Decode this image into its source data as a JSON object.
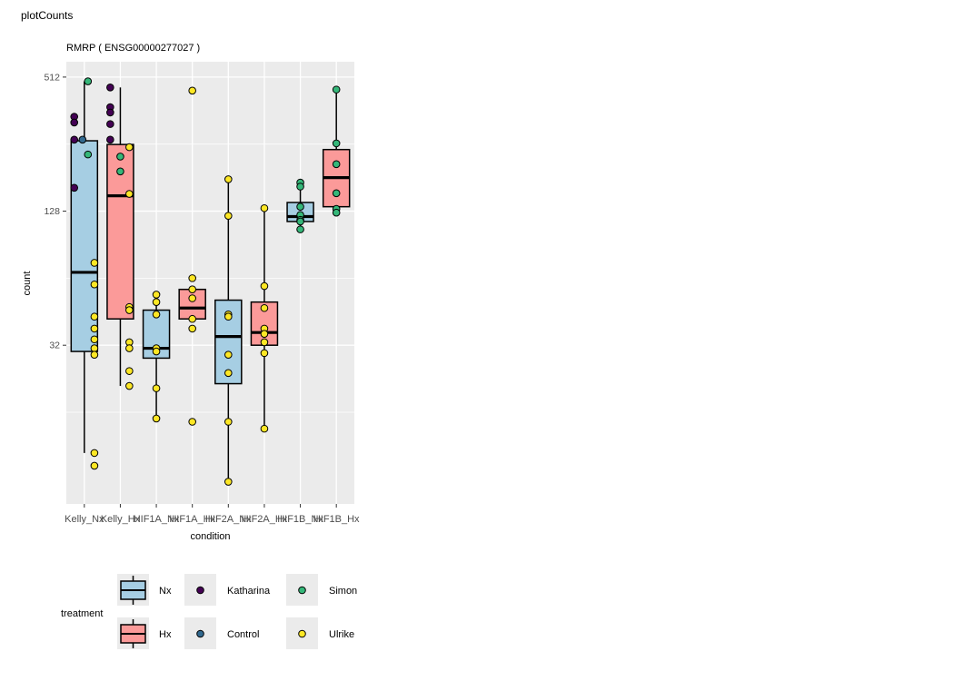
{
  "window_title": "plotCounts",
  "chart_data": {
    "type": "box",
    "title": "RMRP ( ENSG00000277027 )",
    "xlabel": "condition",
    "ylabel": "count",
    "y_scale": "log2",
    "ylim": [
      6.2,
      600
    ],
    "y_ticks": [
      32,
      128,
      512
    ],
    "grid": true,
    "categories": [
      "Kelly_Nx",
      "Kelly_Hx",
      "HIF1A_Nx",
      "HIF1A_Hx",
      "HIF2A_Nx",
      "HIF2A_Hx",
      "HIF1B_Nx",
      "HIF1B_Hx"
    ],
    "boxes": [
      {
        "condition": "Kelly_Nx",
        "treatment": "Nx",
        "whisker_low": 10.5,
        "q1": 30,
        "median": 68,
        "q3": 265,
        "whisker_high": 490
      },
      {
        "condition": "Kelly_Hx",
        "treatment": "Hx",
        "whisker_low": 21,
        "q1": 42,
        "median": 150,
        "q3": 255,
        "whisker_high": 460
      },
      {
        "condition": "HIF1A_Nx",
        "treatment": "Nx",
        "whisker_low": 15,
        "q1": 28,
        "median": 31,
        "q3": 46,
        "whisker_high": 54
      },
      {
        "condition": "HIF1A_Hx",
        "treatment": "Hx",
        "whisker_low": 41.5,
        "q1": 42,
        "median": 47,
        "q3": 57,
        "whisker_high": 57
      },
      {
        "condition": "HIF2A_Nx",
        "treatment": "Nx",
        "whisker_low": 7.8,
        "q1": 21.5,
        "median": 35,
        "q3": 51,
        "whisker_high": 178
      },
      {
        "condition": "HIF2A_Hx",
        "treatment": "Hx",
        "whisker_low": 13.5,
        "q1": 32,
        "median": 36.5,
        "q3": 50,
        "whisker_high": 132
      },
      {
        "condition": "HIF1B_Nx",
        "treatment": "Nx",
        "whisker_low": 106,
        "q1": 115,
        "median": 121,
        "q3": 140,
        "whisker_high": 172
      },
      {
        "condition": "HIF1B_Hx",
        "treatment": "Hx",
        "whisker_low": 127,
        "q1": 134,
        "median": 181,
        "q3": 242,
        "whisker_high": 450
      }
    ],
    "points": [
      {
        "condition": "Kelly_Nx",
        "sample": "Simon",
        "y": 490,
        "jitter": 0.1
      },
      {
        "condition": "Kelly_Nx",
        "sample": "Katharina",
        "y": 340,
        "jitter": -0.28
      },
      {
        "condition": "Kelly_Nx",
        "sample": "Katharina",
        "y": 320,
        "jitter": -0.28
      },
      {
        "condition": "Kelly_Nx",
        "sample": "Katharina",
        "y": 268,
        "jitter": -0.28
      },
      {
        "condition": "Kelly_Nx",
        "sample": "Control",
        "y": 268,
        "jitter": -0.05
      },
      {
        "condition": "Kelly_Nx",
        "sample": "Simon",
        "y": 230,
        "jitter": 0.1
      },
      {
        "condition": "Kelly_Nx",
        "sample": "Katharina",
        "y": 163,
        "jitter": -0.28
      },
      {
        "condition": "Kelly_Nx",
        "sample": "Ulrike",
        "y": 75,
        "jitter": 0.28
      },
      {
        "condition": "Kelly_Nx",
        "sample": "Ulrike",
        "y": 60,
        "jitter": 0.28
      },
      {
        "condition": "Kelly_Nx",
        "sample": "Ulrike",
        "y": 43,
        "jitter": 0.28
      },
      {
        "condition": "Kelly_Nx",
        "sample": "Ulrike",
        "y": 38,
        "jitter": 0.28
      },
      {
        "condition": "Kelly_Nx",
        "sample": "Ulrike",
        "y": 34,
        "jitter": 0.28
      },
      {
        "condition": "Kelly_Nx",
        "sample": "Ulrike",
        "y": 31,
        "jitter": 0.28
      },
      {
        "condition": "Kelly_Nx",
        "sample": "Ulrike",
        "y": 29,
        "jitter": 0.28
      },
      {
        "condition": "Kelly_Nx",
        "sample": "Ulrike",
        "y": 10.5,
        "jitter": 0.28
      },
      {
        "condition": "Kelly_Nx",
        "sample": "Ulrike",
        "y": 9.2,
        "jitter": 0.28
      },
      {
        "condition": "Kelly_Hx",
        "sample": "Katharina",
        "y": 460,
        "jitter": -0.28
      },
      {
        "condition": "Kelly_Hx",
        "sample": "Katharina",
        "y": 375,
        "jitter": -0.28
      },
      {
        "condition": "Kelly_Hx",
        "sample": "Katharina",
        "y": 355,
        "jitter": -0.28
      },
      {
        "condition": "Kelly_Hx",
        "sample": "Katharina",
        "y": 315,
        "jitter": -0.28
      },
      {
        "condition": "Kelly_Hx",
        "sample": "Katharina",
        "y": 268,
        "jitter": -0.28
      },
      {
        "condition": "Kelly_Hx",
        "sample": "Ulrike",
        "y": 248,
        "jitter": 0.25
      },
      {
        "condition": "Kelly_Hx",
        "sample": "Simon",
        "y": 225,
        "jitter": 0
      },
      {
        "condition": "Kelly_Hx",
        "sample": "Simon",
        "y": 193,
        "jitter": 0
      },
      {
        "condition": "Kelly_Hx",
        "sample": "Ulrike",
        "y": 153,
        "jitter": 0.25
      },
      {
        "condition": "Kelly_Hx",
        "sample": "Ulrike",
        "y": 47.5,
        "jitter": 0.25
      },
      {
        "condition": "Kelly_Hx",
        "sample": "Ulrike",
        "y": 46,
        "jitter": 0.25
      },
      {
        "condition": "Kelly_Hx",
        "sample": "Ulrike",
        "y": 33,
        "jitter": 0.25
      },
      {
        "condition": "Kelly_Hx",
        "sample": "Ulrike",
        "y": 31,
        "jitter": 0.25
      },
      {
        "condition": "Kelly_Hx",
        "sample": "Ulrike",
        "y": 24.5,
        "jitter": 0.25
      },
      {
        "condition": "Kelly_Hx",
        "sample": "Ulrike",
        "y": 21,
        "jitter": 0.25
      },
      {
        "condition": "HIF1A_Nx",
        "sample": "Ulrike",
        "y": 54,
        "jitter": 0
      },
      {
        "condition": "HIF1A_Nx",
        "sample": "Ulrike",
        "y": 50,
        "jitter": 0
      },
      {
        "condition": "HIF1A_Nx",
        "sample": "Ulrike",
        "y": 44,
        "jitter": 0
      },
      {
        "condition": "HIF1A_Nx",
        "sample": "Ulrike",
        "y": 31,
        "jitter": 0
      },
      {
        "condition": "HIF1A_Nx",
        "sample": "Ulrike",
        "y": 30,
        "jitter": 0
      },
      {
        "condition": "HIF1A_Nx",
        "sample": "Ulrike",
        "y": 20.5,
        "jitter": 0
      },
      {
        "condition": "HIF1A_Nx",
        "sample": "Ulrike",
        "y": 15,
        "jitter": 0
      },
      {
        "condition": "HIF1A_Hx",
        "sample": "Ulrike",
        "y": 445,
        "jitter": 0
      },
      {
        "condition": "HIF1A_Hx",
        "sample": "Ulrike",
        "y": 64,
        "jitter": 0
      },
      {
        "condition": "HIF1A_Hx",
        "sample": "Ulrike",
        "y": 57,
        "jitter": 0
      },
      {
        "condition": "HIF1A_Hx",
        "sample": "Ulrike",
        "y": 52,
        "jitter": 0
      },
      {
        "condition": "HIF1A_Hx",
        "sample": "Ulrike",
        "y": 42,
        "jitter": 0
      },
      {
        "condition": "HIF1A_Hx",
        "sample": "Ulrike",
        "y": 38,
        "jitter": 0
      },
      {
        "condition": "HIF1A_Hx",
        "sample": "Ulrike",
        "y": 14.5,
        "jitter": 0
      },
      {
        "condition": "HIF2A_Nx",
        "sample": "Ulrike",
        "y": 178,
        "jitter": 0
      },
      {
        "condition": "HIF2A_Nx",
        "sample": "Ulrike",
        "y": 122,
        "jitter": 0
      },
      {
        "condition": "HIF2A_Nx",
        "sample": "Ulrike",
        "y": 44,
        "jitter": 0
      },
      {
        "condition": "HIF2A_Nx",
        "sample": "Ulrike",
        "y": 43,
        "jitter": 0
      },
      {
        "condition": "HIF2A_Nx",
        "sample": "Ulrike",
        "y": 29,
        "jitter": 0
      },
      {
        "condition": "HIF2A_Nx",
        "sample": "Ulrike",
        "y": 24,
        "jitter": 0
      },
      {
        "condition": "HIF2A_Nx",
        "sample": "Ulrike",
        "y": 14.5,
        "jitter": 0
      },
      {
        "condition": "HIF2A_Nx",
        "sample": "Ulrike",
        "y": 7.8,
        "jitter": 0
      },
      {
        "condition": "HIF2A_Hx",
        "sample": "Ulrike",
        "y": 132,
        "jitter": 0
      },
      {
        "condition": "HIF2A_Hx",
        "sample": "Ulrike",
        "y": 59,
        "jitter": 0
      },
      {
        "condition": "HIF2A_Hx",
        "sample": "Ulrike",
        "y": 47,
        "jitter": 0
      },
      {
        "condition": "HIF2A_Hx",
        "sample": "Ulrike",
        "y": 38,
        "jitter": 0
      },
      {
        "condition": "HIF2A_Hx",
        "sample": "Ulrike",
        "y": 36,
        "jitter": 0
      },
      {
        "condition": "HIF2A_Hx",
        "sample": "Ulrike",
        "y": 33,
        "jitter": 0
      },
      {
        "condition": "HIF2A_Hx",
        "sample": "Ulrike",
        "y": 29.5,
        "jitter": 0
      },
      {
        "condition": "HIF2A_Hx",
        "sample": "Ulrike",
        "y": 13.5,
        "jitter": 0
      },
      {
        "condition": "HIF1B_Nx",
        "sample": "Simon",
        "y": 172,
        "jitter": 0
      },
      {
        "condition": "HIF1B_Nx",
        "sample": "Simon",
        "y": 165,
        "jitter": 0
      },
      {
        "condition": "HIF1B_Nx",
        "sample": "Simon",
        "y": 134,
        "jitter": 0
      },
      {
        "condition": "HIF1B_Nx",
        "sample": "Simon",
        "y": 123,
        "jitter": 0
      },
      {
        "condition": "HIF1B_Nx",
        "sample": "Simon",
        "y": 117,
        "jitter": 0
      },
      {
        "condition": "HIF1B_Nx",
        "sample": "Simon",
        "y": 115,
        "jitter": 0
      },
      {
        "condition": "HIF1B_Nx",
        "sample": "Simon",
        "y": 106,
        "jitter": 0
      },
      {
        "condition": "HIF1B_Hx",
        "sample": "Simon",
        "y": 450,
        "jitter": 0
      },
      {
        "condition": "HIF1B_Hx",
        "sample": "Simon",
        "y": 258,
        "jitter": 0
      },
      {
        "condition": "HIF1B_Hx",
        "sample": "Simon",
        "y": 208,
        "jitter": 0
      },
      {
        "condition": "HIF1B_Hx",
        "sample": "Simon",
        "y": 154,
        "jitter": 0
      },
      {
        "condition": "HIF1B_Hx",
        "sample": "Simon",
        "y": 131,
        "jitter": 0
      },
      {
        "condition": "HIF1B_Hx",
        "sample": "Simon",
        "y": 126,
        "jitter": 0
      }
    ],
    "legend": {
      "title": "treatment",
      "placement": "bottom",
      "treatments": [
        {
          "label": "Nx",
          "fill": "#a6cee3"
        },
        {
          "label": "Hx",
          "fill": "#fb9a99"
        }
      ],
      "samples": [
        {
          "label": "Katharina",
          "color": "#440154"
        },
        {
          "label": "Control",
          "color": "#31688e"
        },
        {
          "label": "Simon",
          "color": "#35b779"
        },
        {
          "label": "Ulrike",
          "color": "#fde725"
        }
      ]
    },
    "colors": {
      "panel_bg": "#ebebeb",
      "grid": "#ffffff",
      "Nx": "#a6cee3",
      "Hx": "#fb9a99",
      "Katharina": "#440154",
      "Control": "#31688e",
      "Simon": "#35b779",
      "Ulrike": "#fde725"
    }
  }
}
